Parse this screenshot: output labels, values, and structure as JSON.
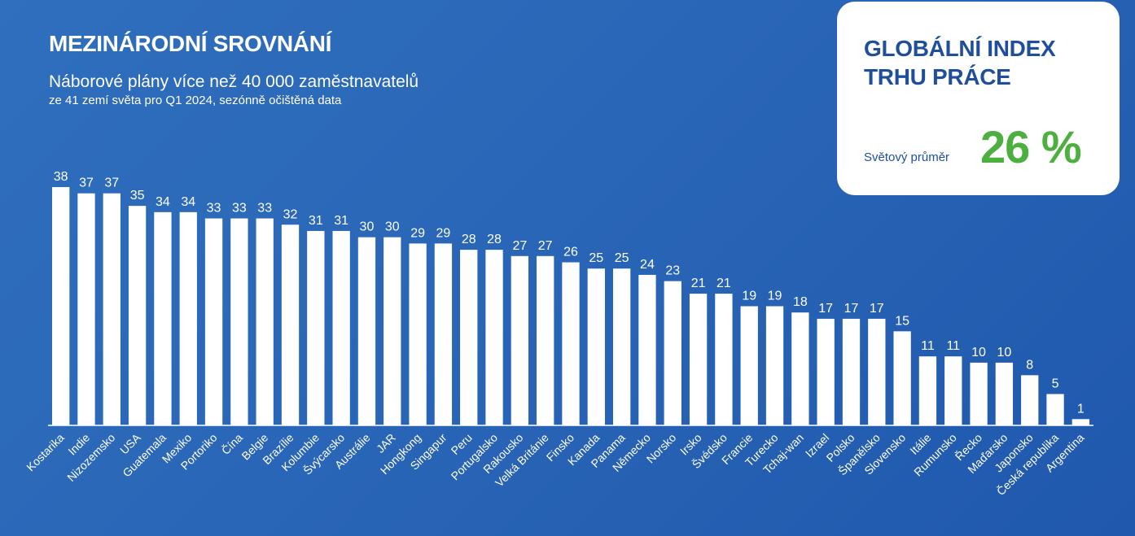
{
  "header": {
    "title": "MEZINÁRODNÍ SROVNÁNÍ",
    "subtitle": "Náborové plány více než 40 000 zaměstnavatelů",
    "subtitle2": "ze 41 zemí světa pro Q1 2024, sezónně očištěná data"
  },
  "card": {
    "title": "GLOBÁLNÍ INDEX TRHU PRÁCE",
    "label": "Světový průměr",
    "value": "26 %"
  },
  "colors": {
    "bar": "#ffffff",
    "accent": "#4caf3f",
    "card_text": "#1f4f9c"
  },
  "chart_data": {
    "type": "bar",
    "categories": [
      "Kostarika",
      "Indie",
      "Nizozemsko",
      "USA",
      "Guatemala",
      "Mexiko",
      "Portoriko",
      "Čína",
      "Belgie",
      "Brazílie",
      "Kolumbie",
      "Švýcarsko",
      "Austrálie",
      "JAR",
      "Hongkong",
      "Singapur",
      "Peru",
      "Portugalsko",
      "Rakousko",
      "Velká Británie",
      "Finsko",
      "Kanada",
      "Panama",
      "Německo",
      "Norsko",
      "Irsko",
      "Švédsko",
      "Francie",
      "Turecko",
      "Tchaj-wan",
      "Izrael",
      "Polsko",
      "Španělsko",
      "Slovensko",
      "Itálie",
      "Rumunsko",
      "Řecko",
      "Maďarsko",
      "Japonsko",
      "Česká republika",
      "Argentina"
    ],
    "values": [
      38,
      37,
      37,
      35,
      34,
      34,
      33,
      33,
      33,
      32,
      31,
      31,
      30,
      30,
      29,
      29,
      28,
      28,
      27,
      27,
      26,
      25,
      25,
      24,
      23,
      21,
      21,
      19,
      19,
      18,
      17,
      17,
      17,
      15,
      11,
      11,
      10,
      10,
      8,
      5,
      1
    ],
    "ylim": [
      0,
      38
    ],
    "grid": false,
    "legend": "none"
  }
}
